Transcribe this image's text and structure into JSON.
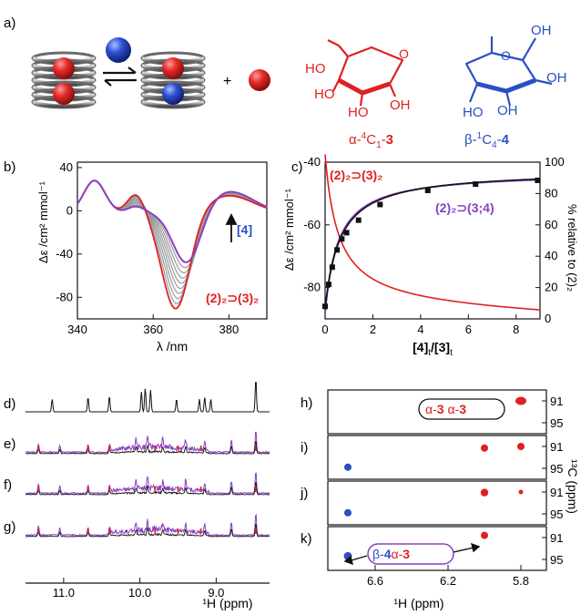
{
  "colors": {
    "red": "#e02020",
    "blue": "#2a4fc4",
    "purple": "#8a3fc0",
    "black": "#111111",
    "grey": "#9a9a9a"
  },
  "panel_labels": {
    "a": "a)",
    "b": "b)",
    "c": "c)",
    "d": "d)",
    "e": "e)",
    "f": "f)",
    "g": "g)",
    "h": "h)",
    "i": "i)",
    "j": "j)",
    "k": "k)"
  },
  "scheme": {
    "plus": "+",
    "alpha_label_main": "α-",
    "alpha_label_sup": "4",
    "alpha_label_mid": "C",
    "alpha_label_sub": "1",
    "alpha_label_end": "-",
    "alpha_label_num": "3",
    "beta_label_main": "β-",
    "beta_label_sup": "1",
    "beta_label_mid": "C",
    "beta_label_sub": "4",
    "beta_label_end": "-",
    "beta_label_num": "4",
    "ho": "HO",
    "oh": "OH",
    "o": "O"
  },
  "panel_b": {
    "type": "line",
    "xlabel": "λ /nm",
    "ylabel": "Δε /cm² mmol⁻¹",
    "xlim": [
      340,
      390
    ],
    "ylim": [
      -100,
      45
    ],
    "xticks": [
      "340",
      "360",
      "380"
    ],
    "yticks": [
      "40",
      "0",
      "-40",
      "-80"
    ],
    "arrow_label": "[4]",
    "complex_label": "(2)₂⊃(3)₂"
  },
  "panel_c": {
    "type": "line",
    "xlabel": "[4]t/[3]t",
    "xlabel_parts": [
      "[",
      "4",
      "]",
      "t",
      "/[",
      "3",
      "]",
      "t"
    ],
    "ylabel_left": "Δε /cm² mmol⁻¹",
    "ylabel_right": "% relative to (2)₂",
    "xlim": [
      0,
      9
    ],
    "ylim_left": [
      -90,
      -40
    ],
    "ylim_right": [
      0,
      100
    ],
    "xticks": [
      "0",
      "2",
      "4",
      "6",
      "8"
    ],
    "yticks_left": [
      "-40",
      "-60",
      "-80"
    ],
    "yticks_right": [
      "100",
      "80",
      "60",
      "40",
      "20",
      "0"
    ],
    "label_red": "(2)₂⊃(3)₂",
    "label_purple": "(2)₂⊃(3;4)",
    "black_points": [
      [
        0.0,
        -86.0
      ],
      [
        0.15,
        -79.0
      ],
      [
        0.3,
        -73.5
      ],
      [
        0.5,
        -68.0
      ],
      [
        0.7,
        -64.5
      ],
      [
        0.9,
        -62.5
      ],
      [
        1.4,
        -58.5
      ],
      [
        2.3,
        -53.5
      ],
      [
        4.3,
        -49.0
      ],
      [
        6.3,
        -47.0
      ],
      [
        8.9,
        -45.8
      ]
    ]
  },
  "nmr_1h": {
    "xlabel": "¹H (ppm)",
    "xticks": [
      "11.0",
      "10.0",
      "9.0"
    ],
    "rows": [
      "d)",
      "e)",
      "f)",
      "g)"
    ]
  },
  "hsqc": {
    "xlabel": "¹H (ppm)",
    "ylabel": "¹³C (ppm)",
    "xticks": [
      "6.6",
      "6.2",
      "5.8"
    ],
    "yticks": [
      "91",
      "95"
    ],
    "label_h": "α-3 α-3",
    "label_h_parts": [
      "α-",
      "3",
      " α-",
      "3"
    ],
    "label_k_parts": [
      "β-",
      "4",
      "α-",
      "3"
    ]
  }
}
